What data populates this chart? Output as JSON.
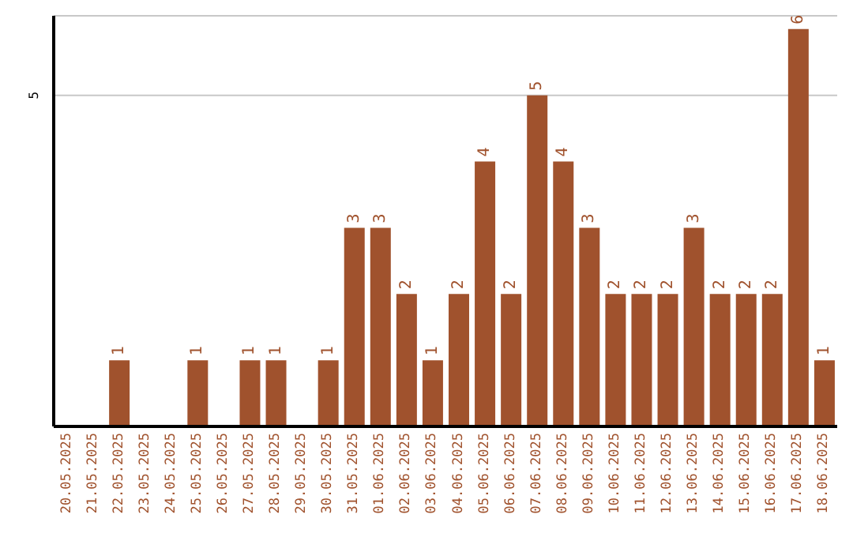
{
  "chart_data": {
    "type": "bar",
    "categories": [
      "20.05.2025",
      "21.05.2025",
      "22.05.2025",
      "23.05.2025",
      "24.05.2025",
      "25.05.2025",
      "26.05.2025",
      "27.05.2025",
      "28.05.2025",
      "29.05.2025",
      "30.05.2025",
      "31.05.2025",
      "01.06.2025",
      "02.06.2025",
      "03.06.2025",
      "04.06.2025",
      "05.06.2025",
      "06.06.2025",
      "07.06.2025",
      "08.06.2025",
      "09.06.2025",
      "10.06.2025",
      "11.06.2025",
      "12.06.2025",
      "13.06.2025",
      "14.06.2025",
      "15.06.2025",
      "16.06.2025",
      "17.06.2025",
      "18.06.2025"
    ],
    "values": [
      0,
      0,
      1,
      0,
      0,
      1,
      0,
      1,
      1,
      0,
      1,
      3,
      3,
      2,
      1,
      2,
      4,
      2,
      5,
      4,
      3,
      2,
      2,
      2,
      3,
      2,
      2,
      2,
      6,
      1
    ],
    "value_labels": [
      null,
      null,
      "1",
      null,
      null,
      "1",
      null,
      "1",
      "1",
      null,
      "1",
      "3",
      "3",
      "2",
      "1",
      "2",
      "4",
      "2",
      "5",
      "4",
      "3",
      "2",
      "2",
      "2",
      "3",
      "2",
      "2",
      "2",
      "6",
      "1"
    ],
    "color": "#a0522d",
    "ylim": [
      0,
      6.2
    ],
    "yticks": [
      5
    ],
    "grid": "y"
  }
}
